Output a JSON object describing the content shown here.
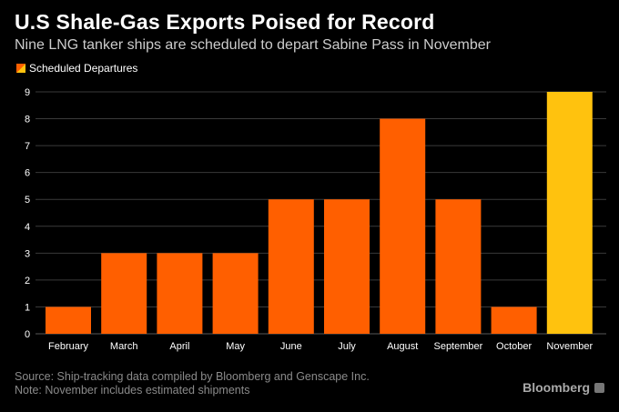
{
  "header": {
    "title": "U.S Shale-Gas Exports Poised for Record",
    "subtitle": "Nine LNG tanker ships are scheduled to depart Sabine Pass in November"
  },
  "legend": {
    "label": "Scheduled Departures"
  },
  "footer": {
    "source": "Source: Ship-tracking data compiled by Bloomberg and Genscape Inc.",
    "note": "Note: November includes estimated shipments"
  },
  "brand": {
    "name": "Bloomberg",
    "badge_icon": "bloomberg-badge-icon"
  },
  "colors": {
    "background": "#000000",
    "bar": "#ff5f00",
    "highlight_bar": "#ffc20e",
    "gridline": "#3a3a3a"
  },
  "chart_data": {
    "type": "bar",
    "title": "U.S Shale-Gas Exports Poised for Record",
    "subtitle": "Nine LNG tanker ships are scheduled to depart Sabine Pass in November",
    "categories": [
      "February",
      "March",
      "April",
      "May",
      "June",
      "July",
      "August",
      "September",
      "October",
      "November"
    ],
    "series": [
      {
        "name": "Scheduled Departures",
        "values": [
          1,
          3,
          3,
          3,
          5,
          5,
          8,
          5,
          1,
          9
        ]
      }
    ],
    "highlight_category": "November",
    "ylim": [
      0,
      9
    ],
    "yticks": [
      0,
      1,
      2,
      3,
      4,
      5,
      6,
      7,
      8,
      9
    ],
    "grid": true,
    "legend_position": "top-left"
  }
}
